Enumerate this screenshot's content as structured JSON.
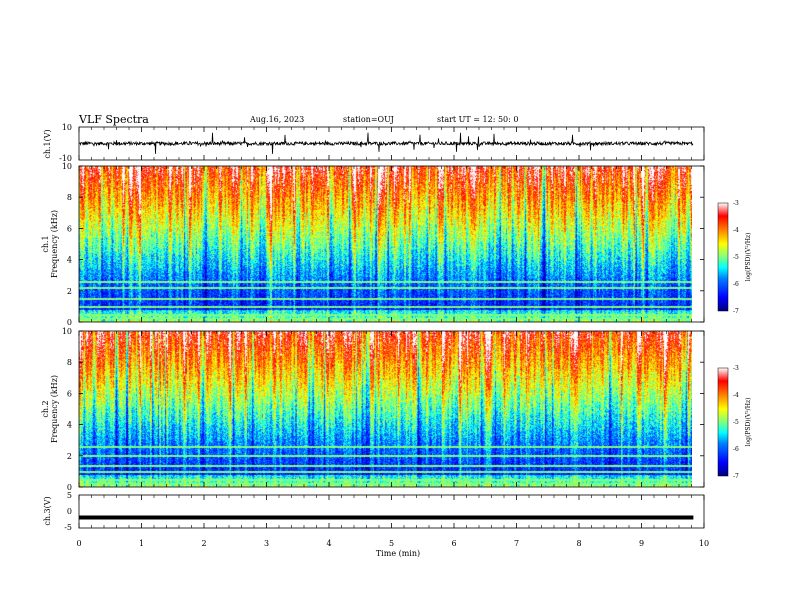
{
  "header": {
    "title": "VLF Spectra",
    "date": "Aug.16, 2023",
    "station": "station=OUJ",
    "start": "start  UT =   12: 50: 0"
  },
  "chart_data": [
    {
      "type": "line",
      "panel": "ch1-waveform",
      "ylabel": "ch.1(V)",
      "ylim": [
        -10,
        10
      ],
      "yticks": [
        "10",
        "-10"
      ],
      "baseline_value": 0,
      "noise_amplitude": 2,
      "spike_amplitude": 6
    },
    {
      "type": "heatmap",
      "panel": "ch1-spectrogram",
      "ylabel_channel": "ch.1",
      "ylabel": "Frequency (kHz)",
      "ylim": [
        0,
        10
      ],
      "yticks": [
        "0",
        "2",
        "4",
        "6",
        "8",
        "10"
      ],
      "colorbar": {
        "label": "log(PSD)(V²/Hz)",
        "range": [
          -7,
          -3
        ],
        "ticks": [
          "-3",
          "-4",
          "-5",
          "-6",
          "-7"
        ]
      },
      "hum_lines_khz": [
        0.2,
        0.5,
        1.0,
        1.5,
        2.2,
        2.6
      ]
    },
    {
      "type": "heatmap",
      "panel": "ch2-spectrogram",
      "ylabel_channel": "ch.2",
      "ylabel": "Frequency (kHz)",
      "ylim": [
        0,
        10
      ],
      "yticks": [
        "0",
        "2",
        "4",
        "6",
        "8",
        "10"
      ],
      "colorbar": {
        "label": "log(PSD)(V²/Hz)",
        "range": [
          -7,
          -3
        ],
        "ticks": [
          "-3",
          "-4",
          "-5",
          "-6",
          "-7"
        ]
      },
      "hum_lines_khz": [
        0.2,
        0.5,
        1.0,
        1.4,
        2.0,
        2.6
      ]
    },
    {
      "type": "line",
      "panel": "ch3-waveform",
      "ylabel": "ch.3(V)",
      "ylim": [
        -5,
        5
      ],
      "yticks": [
        "5",
        "0",
        "-5"
      ],
      "baseline_value": -1.8
    }
  ],
  "xaxis": {
    "label": "Time (min)",
    "range": [
      0,
      10
    ],
    "data_end": 9.83,
    "ticks": [
      "0",
      "1",
      "2",
      "3",
      "4",
      "5",
      "6",
      "7",
      "8",
      "9",
      "10"
    ]
  },
  "colors": {
    "colormap": [
      "#00007f",
      "#0000ff",
      "#007fff",
      "#00ffff",
      "#7fff7f",
      "#ffff00",
      "#ff7f00",
      "#ff0000",
      "#ffffff"
    ]
  }
}
